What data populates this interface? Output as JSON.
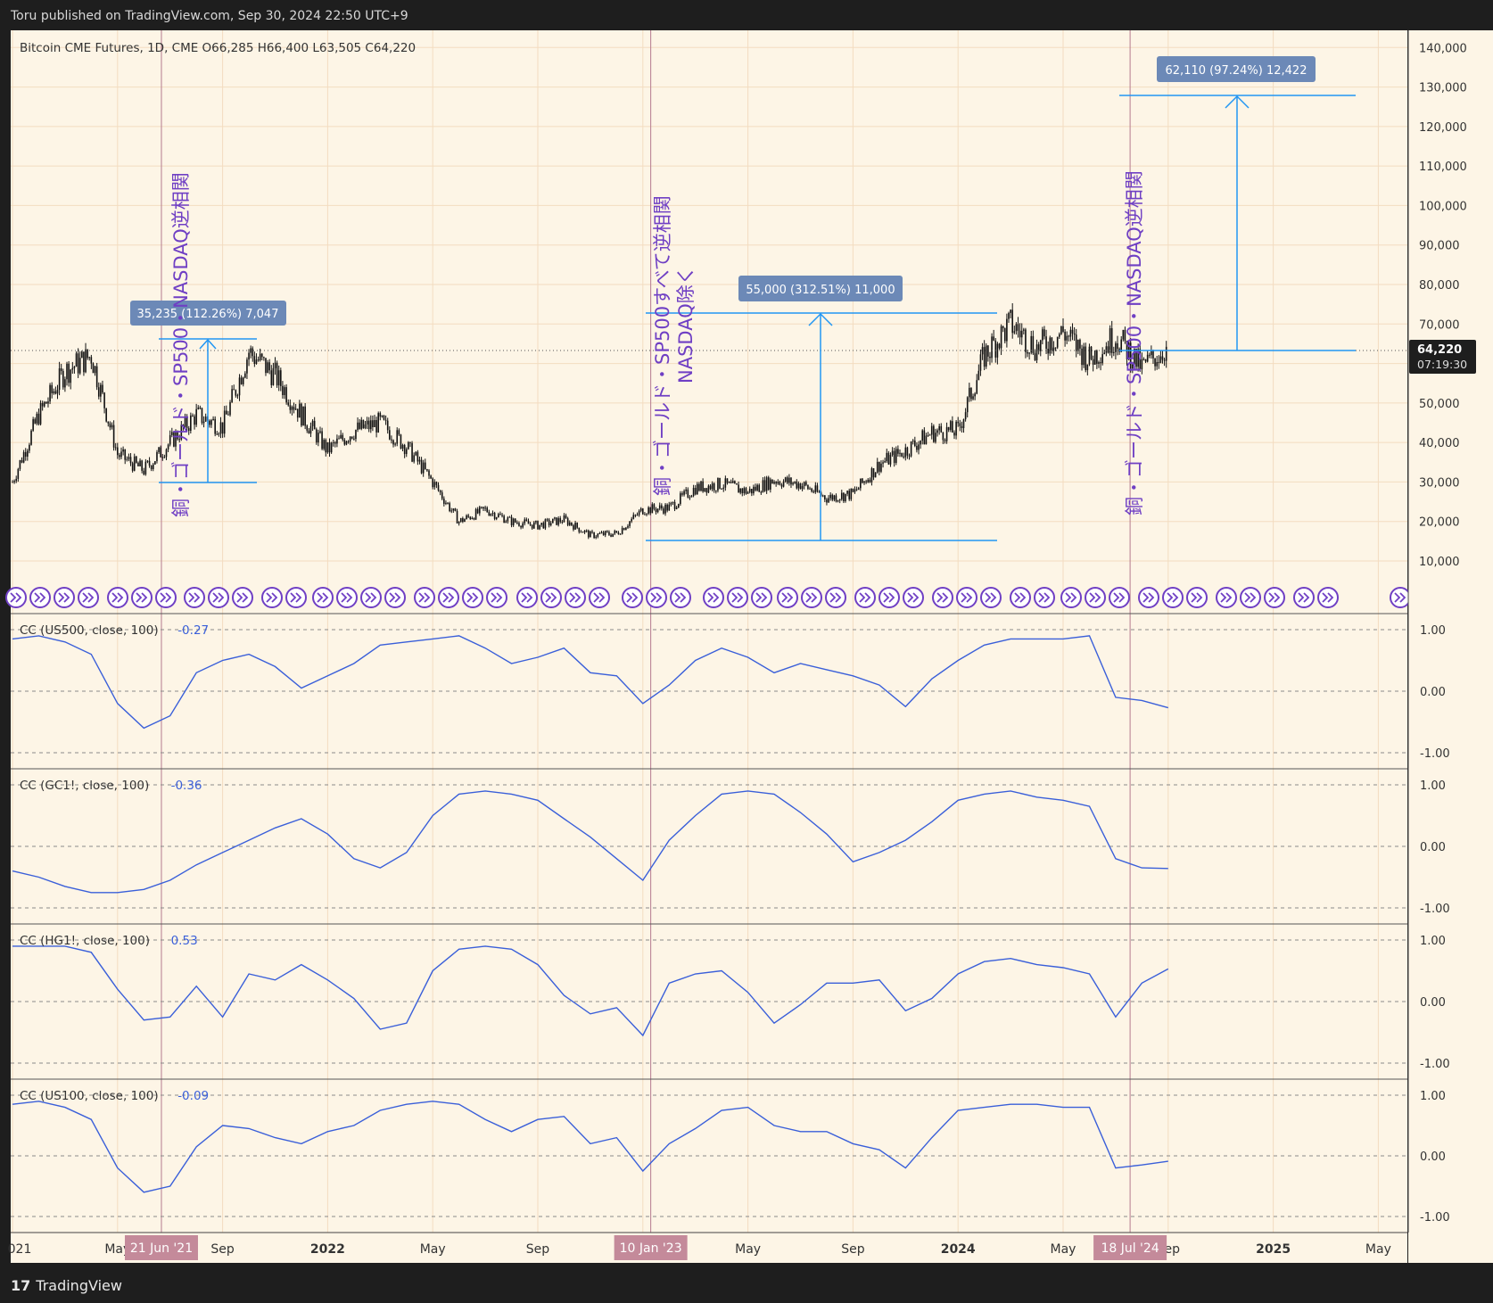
{
  "header": {
    "text": "Toru published on TradingView.com, Sep 30, 2024 22:50 UTC+9"
  },
  "footer": {
    "brand": "TradingView",
    "logo": "17"
  },
  "colors": {
    "panel_bg": "#fdf5e6",
    "outer_bg": "#1e1e1e",
    "candle": "#111111",
    "indicator_line": "#3a5fd9",
    "measure_line": "#2196f3",
    "measure_label_bg": "#6c89b7",
    "annotation_text": "#6f3fc4",
    "event_line": "#b47a8e",
    "event_label_bg": "#c48a9a",
    "grid": "#f3dcc0",
    "price_tag_bg": "#1e1e1e"
  },
  "main_legend": "Bitcoin CME Futures, 1D, CME  O66,285  H66,400  L63,505  C64,220",
  "price_tag": {
    "price": "64,220",
    "countdown": "07:19:30"
  },
  "measures": [
    {
      "label": "35,235 (112.26%) 7,047"
    },
    {
      "label": "55,000 (312.51%) 11,000"
    },
    {
      "label": "62,110 (97.24%) 12,422"
    }
  ],
  "annotations": [
    {
      "text": "銅・ゴールド・SP500・NASDAQ逆相関"
    },
    {
      "text": "銅・ゴールド・SP500すべて逆相関"
    },
    {
      "text": "NASDAQ除く"
    },
    {
      "text": "銅・ゴールド・SP500・NASDAQ逆相関"
    }
  ],
  "event_labels": [
    "21 Jun '21",
    "10 Jan '23",
    "18 Jul '24"
  ],
  "x_axis_labels": [
    "021",
    "May",
    "Sep",
    "2022",
    "May",
    "Sep",
    "May",
    "Sep",
    "2024",
    "May",
    "Sep",
    "2025",
    "May"
  ],
  "event_icon": "fast-forward-icon",
  "chart_data": [
    {
      "type": "candlestick",
      "title": "Bitcoin CME Futures, 1D, CME",
      "ohlc_last": {
        "open": 66285,
        "high": 66400,
        "low": 63505,
        "close": 64220
      },
      "y_ticks": [
        "140,000",
        "130,000",
        "120,000",
        "110,000",
        "100,000",
        "90,000",
        "80,000",
        "70,000",
        "60,000",
        "50,000",
        "40,000",
        "30,000",
        "20,000",
        "10,000"
      ],
      "ylim": [
        3000,
        143000
      ],
      "x": [
        "2021-01",
        "2021-02",
        "2021-03",
        "2021-04",
        "2021-05",
        "2021-06",
        "2021-07",
        "2021-08",
        "2021-09",
        "2021-10",
        "2021-11",
        "2021-12",
        "2022-01",
        "2022-02",
        "2022-03",
        "2022-04",
        "2022-05",
        "2022-06",
        "2022-07",
        "2022-08",
        "2022-09",
        "2022-10",
        "2022-11",
        "2022-12",
        "2023-01",
        "2023-02",
        "2023-03",
        "2023-04",
        "2023-05",
        "2023-06",
        "2023-07",
        "2023-08",
        "2023-09",
        "2023-10",
        "2023-11",
        "2023-12",
        "2024-01",
        "2024-02",
        "2024-03",
        "2024-04",
        "2024-05",
        "2024-06",
        "2024-07",
        "2024-08",
        "2024-09"
      ],
      "close": [
        30000,
        47000,
        58000,
        62000,
        37000,
        33000,
        40000,
        47000,
        44000,
        63000,
        57000,
        47000,
        38000,
        43000,
        45000,
        39000,
        30000,
        20000,
        23000,
        20000,
        19000,
        20500,
        16500,
        17000,
        23000,
        23500,
        28500,
        29500,
        27500,
        30500,
        29500,
        26000,
        27000,
        34500,
        38000,
        42500,
        43000,
        62000,
        70000,
        64000,
        68000,
        61000,
        67000,
        59000,
        64220
      ]
    },
    {
      "type": "line",
      "title": "CC (US500, close, 100)",
      "last_value": "-0.27",
      "y_ticks": [
        "1.00",
        "0.00",
        "-1.00"
      ],
      "ylim": [
        -1.1,
        1.1
      ],
      "x": [
        "2021-01",
        "2021-02",
        "2021-03",
        "2021-04",
        "2021-05",
        "2021-06",
        "2021-07",
        "2021-08",
        "2021-09",
        "2021-10",
        "2021-11",
        "2021-12",
        "2022-01",
        "2022-02",
        "2022-03",
        "2022-04",
        "2022-05",
        "2022-06",
        "2022-07",
        "2022-08",
        "2022-09",
        "2022-10",
        "2022-11",
        "2022-12",
        "2023-01",
        "2023-02",
        "2023-03",
        "2023-04",
        "2023-05",
        "2023-06",
        "2023-07",
        "2023-08",
        "2023-09",
        "2023-10",
        "2023-11",
        "2023-12",
        "2024-01",
        "2024-02",
        "2024-03",
        "2024-04",
        "2024-05",
        "2024-06",
        "2024-07",
        "2024-08",
        "2024-09"
      ],
      "values": [
        0.85,
        0.9,
        0.8,
        0.6,
        -0.2,
        -0.6,
        -0.4,
        0.3,
        0.5,
        0.6,
        0.4,
        0.05,
        0.25,
        0.45,
        0.75,
        0.8,
        0.85,
        0.9,
        0.7,
        0.45,
        0.55,
        0.7,
        0.3,
        0.25,
        -0.2,
        0.1,
        0.5,
        0.7,
        0.55,
        0.3,
        0.45,
        0.35,
        0.25,
        0.1,
        -0.25,
        0.2,
        0.5,
        0.75,
        0.85,
        0.85,
        0.85,
        0.9,
        -0.1,
        -0.15,
        -0.27
      ]
    },
    {
      "type": "line",
      "title": "CC (GC1!, close, 100)",
      "last_value": "-0.36",
      "y_ticks": [
        "1.00",
        "0.00",
        "-1.00"
      ],
      "ylim": [
        -1.1,
        1.1
      ],
      "x": [
        "2021-01",
        "2021-02",
        "2021-03",
        "2021-04",
        "2021-05",
        "2021-06",
        "2021-07",
        "2021-08",
        "2021-09",
        "2021-10",
        "2021-11",
        "2021-12",
        "2022-01",
        "2022-02",
        "2022-03",
        "2022-04",
        "2022-05",
        "2022-06",
        "2022-07",
        "2022-08",
        "2022-09",
        "2022-10",
        "2022-11",
        "2022-12",
        "2023-01",
        "2023-02",
        "2023-03",
        "2023-04",
        "2023-05",
        "2023-06",
        "2023-07",
        "2023-08",
        "2023-09",
        "2023-10",
        "2023-11",
        "2023-12",
        "2024-01",
        "2024-02",
        "2024-03",
        "2024-04",
        "2024-05",
        "2024-06",
        "2024-07",
        "2024-08",
        "2024-09"
      ],
      "values": [
        -0.4,
        -0.5,
        -0.65,
        -0.75,
        -0.75,
        -0.7,
        -0.55,
        -0.3,
        -0.1,
        0.1,
        0.3,
        0.45,
        0.2,
        -0.2,
        -0.35,
        -0.1,
        0.5,
        0.85,
        0.9,
        0.85,
        0.75,
        0.45,
        0.15,
        -0.2,
        -0.55,
        0.1,
        0.5,
        0.85,
        0.9,
        0.85,
        0.55,
        0.2,
        -0.25,
        -0.1,
        0.1,
        0.4,
        0.75,
        0.85,
        0.9,
        0.8,
        0.75,
        0.65,
        -0.2,
        -0.35,
        -0.36
      ]
    },
    {
      "type": "line",
      "title": "CC (HG1!, close, 100)",
      "last_value": "0.53",
      "y_ticks": [
        "1.00",
        "0.00",
        "-1.00"
      ],
      "ylim": [
        -1.1,
        1.1
      ],
      "x": [
        "2021-01",
        "2021-02",
        "2021-03",
        "2021-04",
        "2021-05",
        "2021-06",
        "2021-07",
        "2021-08",
        "2021-09",
        "2021-10",
        "2021-11",
        "2021-12",
        "2022-01",
        "2022-02",
        "2022-03",
        "2022-04",
        "2022-05",
        "2022-06",
        "2022-07",
        "2022-08",
        "2022-09",
        "2022-10",
        "2022-11",
        "2022-12",
        "2023-01",
        "2023-02",
        "2023-03",
        "2023-04",
        "2023-05",
        "2023-06",
        "2023-07",
        "2023-08",
        "2023-09",
        "2023-10",
        "2023-11",
        "2023-12",
        "2024-01",
        "2024-02",
        "2024-03",
        "2024-04",
        "2024-05",
        "2024-06",
        "2024-07",
        "2024-08",
        "2024-09"
      ],
      "values": [
        0.9,
        0.9,
        0.9,
        0.8,
        0.2,
        -0.3,
        -0.25,
        0.25,
        -0.25,
        0.45,
        0.35,
        0.6,
        0.35,
        0.05,
        -0.45,
        -0.35,
        0.5,
        0.85,
        0.9,
        0.85,
        0.6,
        0.1,
        -0.2,
        -0.1,
        -0.55,
        0.3,
        0.45,
        0.5,
        0.15,
        -0.35,
        -0.05,
        0.3,
        0.3,
        0.35,
        -0.15,
        0.05,
        0.45,
        0.65,
        0.7,
        0.6,
        0.55,
        0.45,
        -0.25,
        0.3,
        0.53
      ]
    },
    {
      "type": "line",
      "title": "CC (US100, close, 100)",
      "last_value": "-0.09",
      "y_ticks": [
        "1.00",
        "0.00",
        "-1.00"
      ],
      "ylim": [
        -1.1,
        1.1
      ],
      "x": [
        "2021-01",
        "2021-02",
        "2021-03",
        "2021-04",
        "2021-05",
        "2021-06",
        "2021-07",
        "2021-08",
        "2021-09",
        "2021-10",
        "2021-11",
        "2021-12",
        "2022-01",
        "2022-02",
        "2022-03",
        "2022-04",
        "2022-05",
        "2022-06",
        "2022-07",
        "2022-08",
        "2022-09",
        "2022-10",
        "2022-11",
        "2022-12",
        "2023-01",
        "2023-02",
        "2023-03",
        "2023-04",
        "2023-05",
        "2023-06",
        "2023-07",
        "2023-08",
        "2023-09",
        "2023-10",
        "2023-11",
        "2023-12",
        "2024-01",
        "2024-02",
        "2024-03",
        "2024-04",
        "2024-05",
        "2024-06",
        "2024-07",
        "2024-08",
        "2024-09"
      ],
      "values": [
        0.85,
        0.9,
        0.8,
        0.6,
        -0.2,
        -0.6,
        -0.5,
        0.15,
        0.5,
        0.45,
        0.3,
        0.2,
        0.4,
        0.5,
        0.75,
        0.85,
        0.9,
        0.85,
        0.6,
        0.4,
        0.6,
        0.65,
        0.2,
        0.3,
        -0.25,
        0.2,
        0.45,
        0.75,
        0.8,
        0.5,
        0.4,
        0.4,
        0.2,
        0.1,
        -0.2,
        0.3,
        0.75,
        0.8,
        0.85,
        0.85,
        0.8,
        0.8,
        -0.2,
        -0.15,
        -0.09
      ]
    }
  ]
}
